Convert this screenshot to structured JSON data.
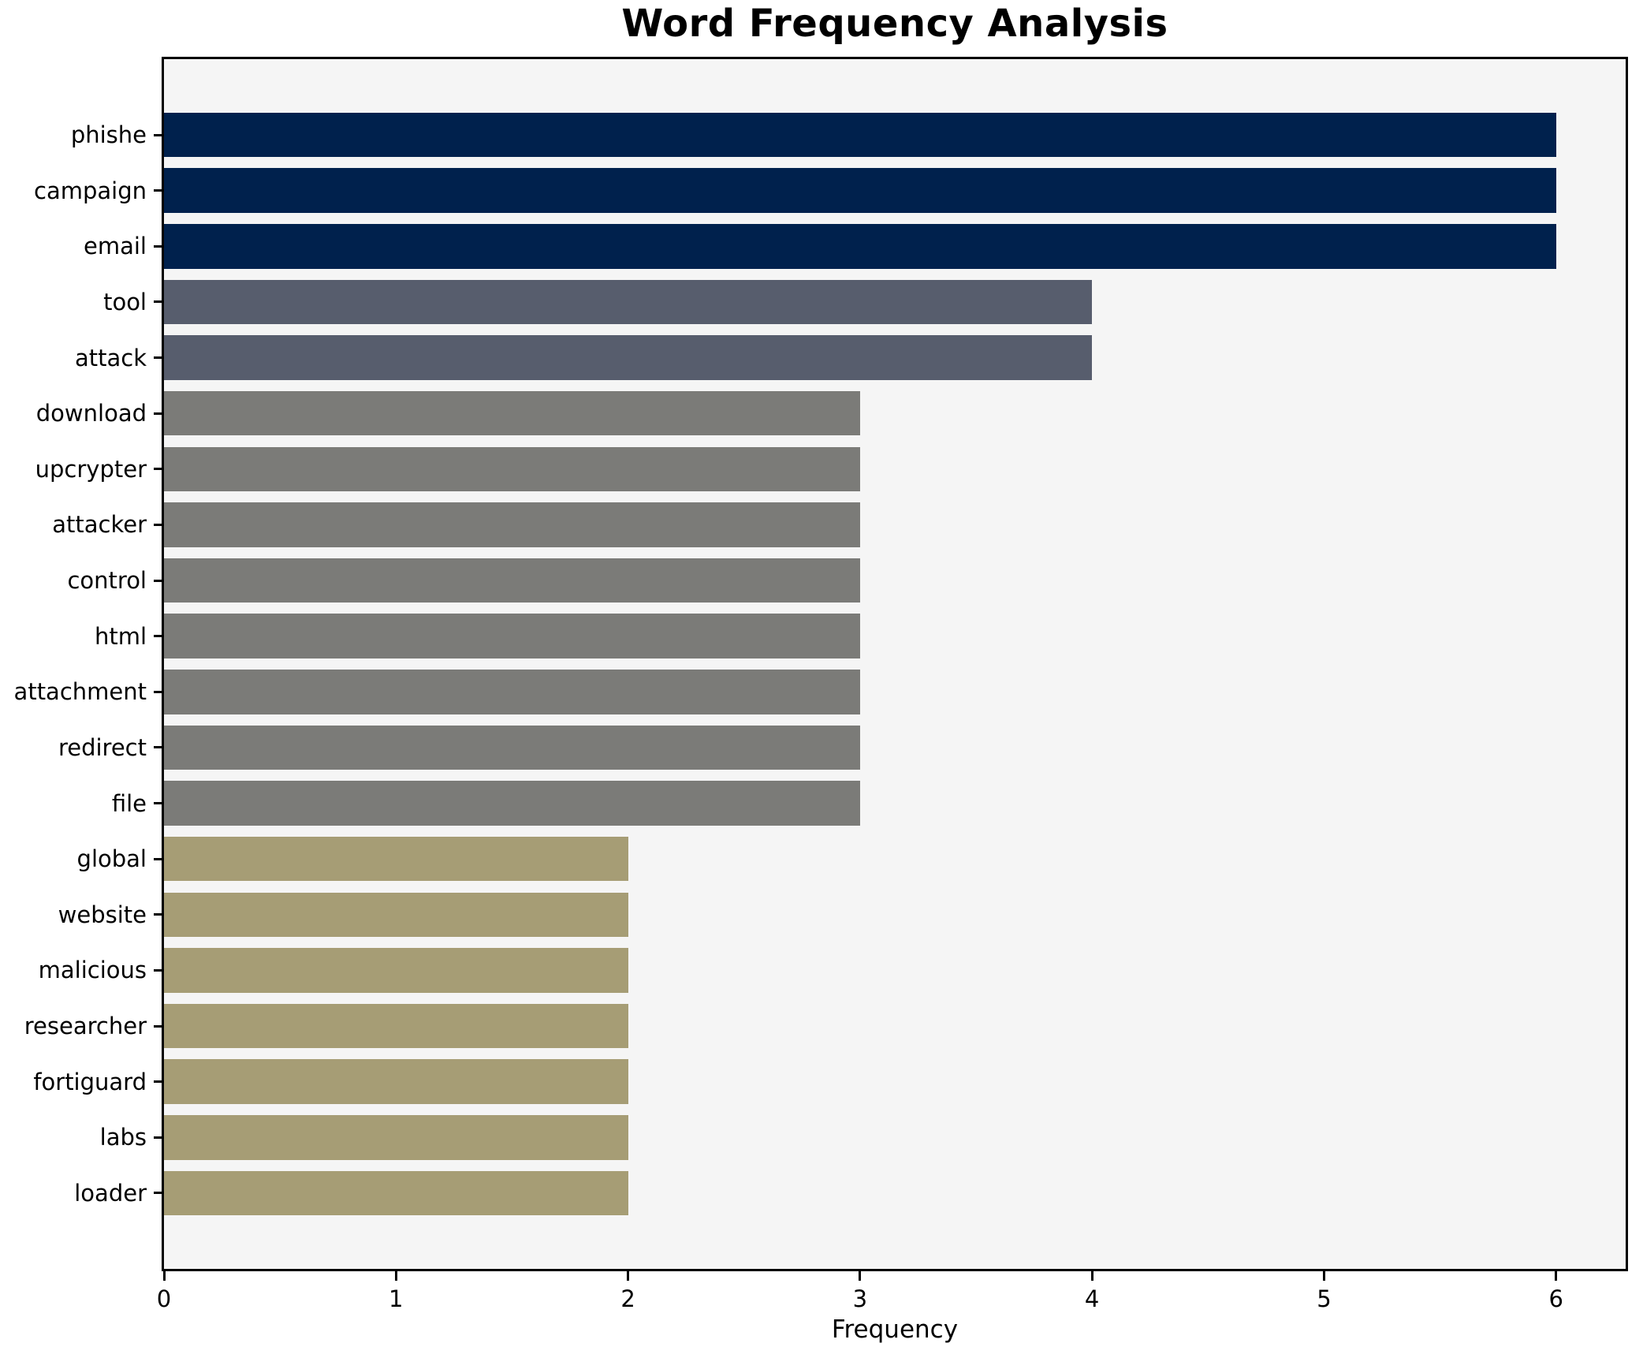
{
  "chart_data": {
    "type": "bar",
    "orientation": "horizontal",
    "title": "Word Frequency Analysis",
    "xlabel": "Frequency",
    "ylabel": "",
    "categories": [
      "phishe",
      "campaign",
      "email",
      "tool",
      "attack",
      "download",
      "upcrypter",
      "attacker",
      "control",
      "html",
      "attachment",
      "redirect",
      "file",
      "global",
      "website",
      "malicious",
      "researcher",
      "fortiguard",
      "labs",
      "loader"
    ],
    "values": [
      6,
      6,
      6,
      4,
      4,
      3,
      3,
      3,
      3,
      3,
      3,
      3,
      3,
      2,
      2,
      2,
      2,
      2,
      2,
      2
    ],
    "bar_colors": [
      "#00214d",
      "#00214d",
      "#00214d",
      "#575d6d",
      "#575d6d",
      "#7b7b78",
      "#7b7b78",
      "#7b7b78",
      "#7b7b78",
      "#7b7b78",
      "#7b7b78",
      "#7b7b78",
      "#7b7b78",
      "#a69d75",
      "#a69d75",
      "#a69d75",
      "#a69d75",
      "#a69d75",
      "#a69d75",
      "#a69d75"
    ],
    "xlim": [
      0,
      6.3
    ],
    "xticks": [
      0,
      1,
      2,
      3,
      4,
      5,
      6
    ],
    "grid": false,
    "legend": null,
    "plot_background": "#f5f5f5",
    "figure_background": "#ffffff",
    "spine_color": "#000000"
  }
}
